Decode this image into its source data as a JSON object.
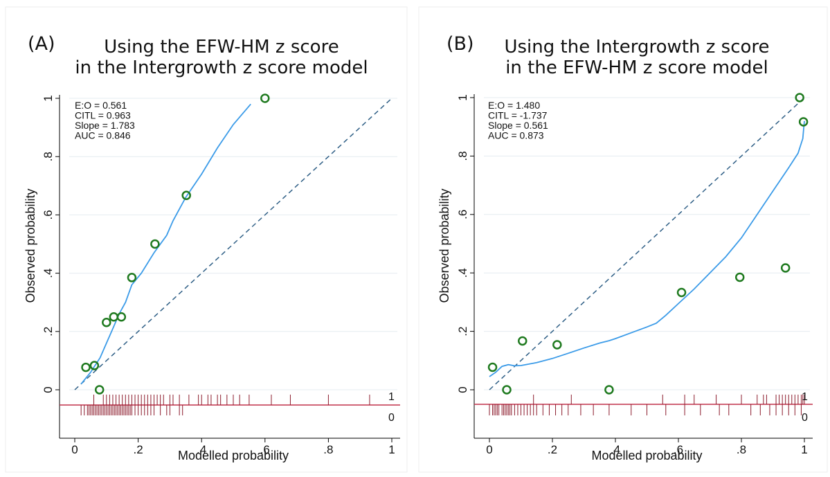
{
  "colors": {
    "background": "#ffffff",
    "grid": "#e4ecf0",
    "axis": "#000000",
    "smooth_line": "#3b9be8",
    "diagonal": "#2f5f86",
    "point": "#1f7a1f",
    "rug": "#8b1a2b",
    "rug_baseline": "#c0304a"
  },
  "chart_data": [
    {
      "type": "scatter",
      "panel_label": "(A)",
      "title_lines": [
        "Using the EFW-HM z score",
        "in the Intergrowth z score model"
      ],
      "xlabel": "Modelled probability",
      "ylabel": "Observed probability",
      "xlim": [
        0,
        1
      ],
      "ylim": [
        0,
        1
      ],
      "xticks": [
        0,
        0.2,
        0.4,
        0.6,
        0.8,
        1
      ],
      "xtick_labels": [
        "0",
        ".2",
        ".4",
        ".6",
        ".8",
        "1"
      ],
      "yticks": [
        0,
        0.2,
        0.4,
        0.6,
        0.8,
        1
      ],
      "ytick_labels": [
        "0",
        ".2",
        ".4",
        ".6",
        ".8",
        "1"
      ],
      "grid": true,
      "stats": [
        "E:O = 0.561",
        "CITL = 0.963",
        "Slope = 1.783",
        "AUC = 0.846"
      ],
      "points": [
        {
          "x": 0.035,
          "y": 0.077
        },
        {
          "x": 0.062,
          "y": 0.083
        },
        {
          "x": 0.078,
          "y": 0.0
        },
        {
          "x": 0.1,
          "y": 0.231
        },
        {
          "x": 0.123,
          "y": 0.25
        },
        {
          "x": 0.147,
          "y": 0.25
        },
        {
          "x": 0.18,
          "y": 0.385
        },
        {
          "x": 0.253,
          "y": 0.5
        },
        {
          "x": 0.352,
          "y": 0.667
        },
        {
          "x": 0.6,
          "y": 1.0
        }
      ],
      "smooth_curve": [
        {
          "x": 0.02,
          "y": 0.02
        },
        {
          "x": 0.05,
          "y": 0.06
        },
        {
          "x": 0.08,
          "y": 0.11
        },
        {
          "x": 0.1,
          "y": 0.16
        },
        {
          "x": 0.12,
          "y": 0.21
        },
        {
          "x": 0.14,
          "y": 0.26
        },
        {
          "x": 0.16,
          "y": 0.3
        },
        {
          "x": 0.18,
          "y": 0.36
        },
        {
          "x": 0.21,
          "y": 0.4
        },
        {
          "x": 0.25,
          "y": 0.47
        },
        {
          "x": 0.29,
          "y": 0.53
        },
        {
          "x": 0.31,
          "y": 0.58
        },
        {
          "x": 0.35,
          "y": 0.66
        },
        {
          "x": 0.4,
          "y": 0.74
        },
        {
          "x": 0.45,
          "y": 0.83
        },
        {
          "x": 0.5,
          "y": 0.91
        },
        {
          "x": 0.555,
          "y": 0.98
        }
      ],
      "rug_labels": [
        "1",
        "0"
      ],
      "rug_events": [
        0.06,
        0.09,
        0.1,
        0.11,
        0.12,
        0.13,
        0.14,
        0.15,
        0.16,
        0.17,
        0.18,
        0.19,
        0.2,
        0.21,
        0.22,
        0.23,
        0.24,
        0.25,
        0.26,
        0.27,
        0.28,
        0.3,
        0.31,
        0.33,
        0.36,
        0.39,
        0.4,
        0.42,
        0.43,
        0.45,
        0.46,
        0.48,
        0.5,
        0.52,
        0.55,
        0.62,
        0.68,
        0.8,
        0.93
      ],
      "rug_nonevents": [
        0.02,
        0.03,
        0.04,
        0.045,
        0.05,
        0.055,
        0.06,
        0.065,
        0.07,
        0.075,
        0.08,
        0.085,
        0.09,
        0.095,
        0.1,
        0.105,
        0.11,
        0.115,
        0.12,
        0.125,
        0.13,
        0.135,
        0.14,
        0.145,
        0.15,
        0.155,
        0.16,
        0.165,
        0.17,
        0.175,
        0.18,
        0.19,
        0.2,
        0.21,
        0.22,
        0.23,
        0.24,
        0.25,
        0.27,
        0.29,
        0.3,
        0.33,
        0.34
      ]
    },
    {
      "type": "scatter",
      "panel_label": "(B)",
      "title_lines": [
        "Using the Intergrowth z score",
        "in the EFW-HM z score model"
      ],
      "xlabel": "Modelled probability",
      "ylabel": "Observed probability",
      "xlim": [
        0,
        1
      ],
      "ylim": [
        0,
        1
      ],
      "xticks": [
        0,
        0.2,
        0.4,
        0.6,
        0.8,
        1
      ],
      "xtick_labels": [
        "0",
        ".2",
        ".4",
        ".6",
        ".8",
        "1"
      ],
      "yticks": [
        0,
        0.2,
        0.4,
        0.6,
        0.8,
        1
      ],
      "ytick_labels": [
        "0",
        ".2",
        ".4",
        ".6",
        ".8",
        "1"
      ],
      "grid": true,
      "stats": [
        "E:O = 1.480",
        "CITL = -1.737",
        "Slope = 0.561",
        "AUC = 0.873"
      ],
      "points": [
        {
          "x": 0.01,
          "y": 0.077
        },
        {
          "x": 0.055,
          "y": 0.0
        },
        {
          "x": 0.105,
          "y": 0.167
        },
        {
          "x": 0.215,
          "y": 0.154
        },
        {
          "x": 0.38,
          "y": 0.0
        },
        {
          "x": 0.61,
          "y": 0.333
        },
        {
          "x": 0.795,
          "y": 0.385
        },
        {
          "x": 0.94,
          "y": 0.417
        },
        {
          "x": 0.985,
          "y": 1.0
        },
        {
          "x": 0.997,
          "y": 0.917
        }
      ],
      "smooth_curve": [
        {
          "x": 0.0,
          "y": 0.045
        },
        {
          "x": 0.02,
          "y": 0.06
        },
        {
          "x": 0.04,
          "y": 0.08
        },
        {
          "x": 0.06,
          "y": 0.086
        },
        {
          "x": 0.08,
          "y": 0.082
        },
        {
          "x": 0.1,
          "y": 0.083
        },
        {
          "x": 0.15,
          "y": 0.093
        },
        {
          "x": 0.2,
          "y": 0.107
        },
        {
          "x": 0.25,
          "y": 0.125
        },
        {
          "x": 0.3,
          "y": 0.143
        },
        {
          "x": 0.35,
          "y": 0.16
        },
        {
          "x": 0.38,
          "y": 0.168
        },
        {
          "x": 0.4,
          "y": 0.175
        },
        {
          "x": 0.45,
          "y": 0.195
        },
        {
          "x": 0.5,
          "y": 0.215
        },
        {
          "x": 0.53,
          "y": 0.228
        },
        {
          "x": 0.56,
          "y": 0.255
        },
        {
          "x": 0.6,
          "y": 0.295
        },
        {
          "x": 0.65,
          "y": 0.345
        },
        {
          "x": 0.7,
          "y": 0.4
        },
        {
          "x": 0.75,
          "y": 0.455
        },
        {
          "x": 0.8,
          "y": 0.52
        },
        {
          "x": 0.85,
          "y": 0.6
        },
        {
          "x": 0.9,
          "y": 0.68
        },
        {
          "x": 0.95,
          "y": 0.76
        },
        {
          "x": 0.98,
          "y": 0.81
        },
        {
          "x": 0.995,
          "y": 0.86
        },
        {
          "x": 1.0,
          "y": 0.92
        }
      ],
      "rug_labels": [
        "1",
        "0"
      ],
      "rug_events": [
        0.14,
        0.26,
        0.55,
        0.62,
        0.65,
        0.72,
        0.8,
        0.85,
        0.87,
        0.88,
        0.91,
        0.92,
        0.93,
        0.94,
        0.95,
        0.96,
        0.97,
        0.98,
        0.99,
        0.995,
        1.0
      ],
      "rug_nonevents": [
        0.0,
        0.01,
        0.015,
        0.02,
        0.025,
        0.03,
        0.04,
        0.045,
        0.05,
        0.055,
        0.06,
        0.065,
        0.07,
        0.08,
        0.09,
        0.1,
        0.11,
        0.12,
        0.13,
        0.14,
        0.15,
        0.17,
        0.19,
        0.21,
        0.23,
        0.25,
        0.29,
        0.33,
        0.38,
        0.45,
        0.5,
        0.56,
        0.62,
        0.67,
        0.73,
        0.76,
        0.83,
        0.86,
        0.89,
        0.91,
        0.93,
        0.95,
        0.97,
        0.99
      ]
    }
  ]
}
